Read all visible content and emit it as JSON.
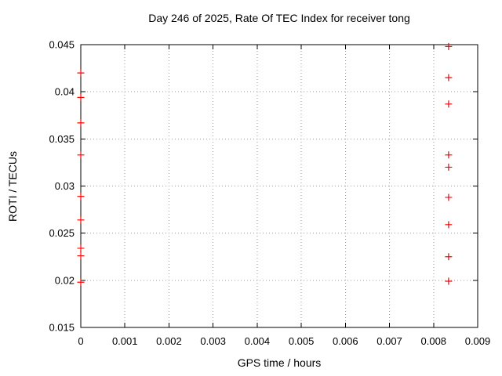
{
  "chart_data": {
    "type": "scatter",
    "title": "Day 246 of 2025, Rate Of TEC Index for receiver tong",
    "xlabel": "GPS time / hours",
    "ylabel": "ROTI / TECUs",
    "xlim": [
      0,
      0.009
    ],
    "ylim": [
      0.015,
      0.045
    ],
    "xtick_values": [
      0,
      0.001,
      0.002,
      0.003,
      0.004,
      0.005,
      0.006,
      0.007,
      0.008,
      0.009
    ],
    "xtick_labels": [
      "0",
      "0.001",
      "0.002",
      "0.003",
      "0.004",
      "0.005",
      "0.006",
      "0.007",
      "0.008",
      "0.009"
    ],
    "ytick_values": [
      0.015,
      0.02,
      0.025,
      0.03,
      0.035,
      0.04,
      0.045
    ],
    "ytick_labels": [
      "0.015",
      "0.02",
      "0.025",
      "0.03",
      "0.035",
      "0.04",
      "0.045"
    ],
    "grid": true,
    "legend": "none",
    "marker": "plus",
    "colors": {
      "marker": "#ff0000",
      "grid": "#9a9a9a",
      "axis": "#000000",
      "background": "#ffffff",
      "text": "#000000"
    },
    "series": [
      {
        "name": "ROTI",
        "points": [
          [
            0,
            0.042
          ],
          [
            0,
            0.0394
          ],
          [
            0,
            0.0367
          ],
          [
            0,
            0.0333
          ],
          [
            0,
            0.0289
          ],
          [
            0,
            0.0264
          ],
          [
            0,
            0.0234
          ],
          [
            0,
            0.0226
          ],
          [
            0,
            0.0198
          ],
          [
            0.00834,
            0.0448
          ],
          [
            0.00834,
            0.0415
          ],
          [
            0.00834,
            0.0387
          ],
          [
            0.00834,
            0.0333
          ],
          [
            0.00834,
            0.032
          ],
          [
            0.00834,
            0.0288
          ],
          [
            0.00834,
            0.0259
          ],
          [
            0.00834,
            0.0225
          ],
          [
            0.00834,
            0.0199
          ]
        ]
      }
    ]
  }
}
